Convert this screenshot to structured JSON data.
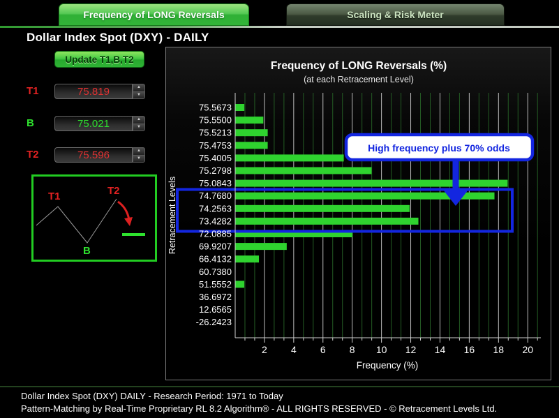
{
  "tabs": {
    "frequency": {
      "label": "Frequency of LONG Reversals",
      "active": true
    },
    "scaling": {
      "label": "Scaling & Risk Meter",
      "active": false
    }
  },
  "page_title": "Dollar Index Spot (DXY) - DAILY",
  "controls": {
    "update_button_label": "Update T1,B,T2",
    "t1": {
      "label": "T1",
      "value": "75.819"
    },
    "b": {
      "label": "B",
      "value": "75.021"
    },
    "t2": {
      "label": "T2",
      "value": "75.596"
    }
  },
  "icons": {
    "spinner_up": "▲",
    "spinner_down": "▼"
  },
  "pattern_diagram": {
    "t1_label": "T1",
    "b_label": "B",
    "t2_label": "T2"
  },
  "chart_data": {
    "type": "bar",
    "orientation": "horizontal",
    "title": "Frequency of LONG Reversals (%)",
    "subtitle": "(at each Retracement Level)",
    "xlabel": "Frequency (%)",
    "ylabel": "Retracement Levels",
    "categories": [
      "75.5673",
      "75.5500",
      "75.5213",
      "75.4753",
      "75.4005",
      "75.2798",
      "75.0843",
      "74.7680",
      "74.2563",
      "73.4282",
      "72.0885",
      "69.9207",
      "66.4132",
      "60.7380",
      "51.5552",
      "36.6972",
      "12.6565",
      "-26.2423"
    ],
    "values": [
      0.6,
      1.9,
      2.2,
      2.2,
      7.4,
      9.3,
      18.6,
      17.7,
      11.9,
      12.5,
      8.0,
      3.5,
      1.6,
      0,
      0.6,
      0,
      0,
      0
    ],
    "xticks": [
      2,
      4,
      6,
      8,
      10,
      12,
      14,
      16,
      18,
      20
    ],
    "xlim": [
      0,
      20.8
    ],
    "grid": "major gray lines at even ticks, minor dark-green lines between",
    "legend": "none",
    "bar_color": "#2fd32f",
    "annotation": {
      "text": "High frequency plus 70% odds",
      "color": "#1326e0",
      "highlighted_categories": [
        "74.7680",
        "74.2563",
        "73.4282"
      ]
    }
  },
  "colors": {
    "accent_green": "#2fd32f",
    "value_red": "#e03232",
    "annotation_blue": "#1326e0",
    "grid_minor_green": "#245c24",
    "grid_major_gray": "#bdbdbd"
  },
  "status_bar": {
    "line1": "Dollar Index Spot (DXY) DAILY - Research Period: 1971 to Today",
    "line2": "Pattern-Matching by Real-Time Proprietary RL 8.2 Algorithm®  -  ALL RIGHTS RESERVED - © Retracement Levels Ltd."
  }
}
